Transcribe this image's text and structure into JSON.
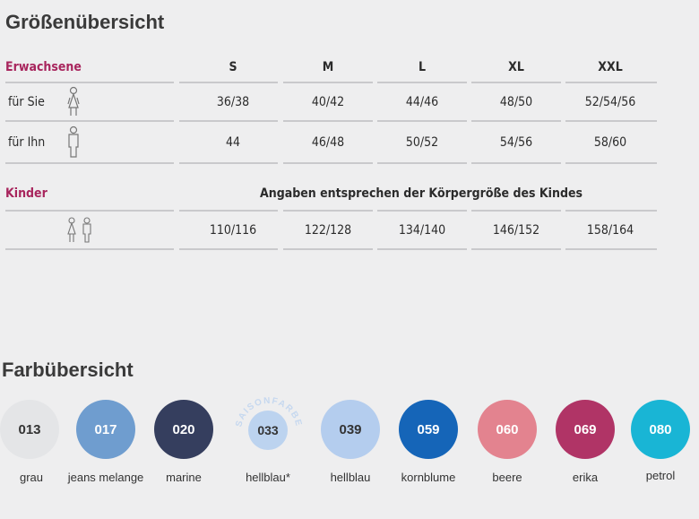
{
  "size_title": "Größenübersicht",
  "color_title": "Farbübersicht",
  "adults": {
    "label": "Erwachsene",
    "sizes": [
      "S",
      "M",
      "L",
      "XL",
      "XXL"
    ],
    "rows": [
      {
        "label": "für Sie",
        "values": [
          "36/38",
          "40/42",
          "44/46",
          "48/50",
          "52/54/56"
        ]
      },
      {
        "label": "für Ihn",
        "values": [
          "44",
          "46/48",
          "50/52",
          "54/56",
          "58/60"
        ]
      }
    ]
  },
  "kids": {
    "label": "Kinder",
    "note": "Angaben entsprechen der Körpergröße des Kindes",
    "values": [
      "110/116",
      "122/128",
      "134/140",
      "146/152",
      "158/164"
    ]
  },
  "colors": [
    {
      "code": "013",
      "name": "grau",
      "bg": "#e4e5e7",
      "fg": "#333333"
    },
    {
      "code": "017",
      "name": "jeans melange",
      "bg": "#6f9dcf",
      "fg": "#ffffff"
    },
    {
      "code": "020",
      "name": "marine",
      "bg": "#353e5e",
      "fg": "#ffffff"
    },
    {
      "code": "033",
      "name": "hellblau*",
      "bg": "#bcd3ef",
      "fg": "#333333",
      "badge": "SAISONFARBE"
    },
    {
      "code": "039",
      "name": "hellblau",
      "bg": "#b4cdee",
      "fg": "#333333"
    },
    {
      "code": "059",
      "name": "kornblume",
      "bg": "#1565b8",
      "fg": "#ffffff"
    },
    {
      "code": "060",
      "name": "beere",
      "bg": "#e3838f",
      "fg": "#ffffff"
    },
    {
      "code": "069",
      "name": "erika",
      "bg": "#b03466",
      "fg": "#ffffff"
    },
    {
      "code": "080",
      "name": "petrol",
      "bg": "#19b5d5",
      "fg": "#ffffff"
    }
  ]
}
